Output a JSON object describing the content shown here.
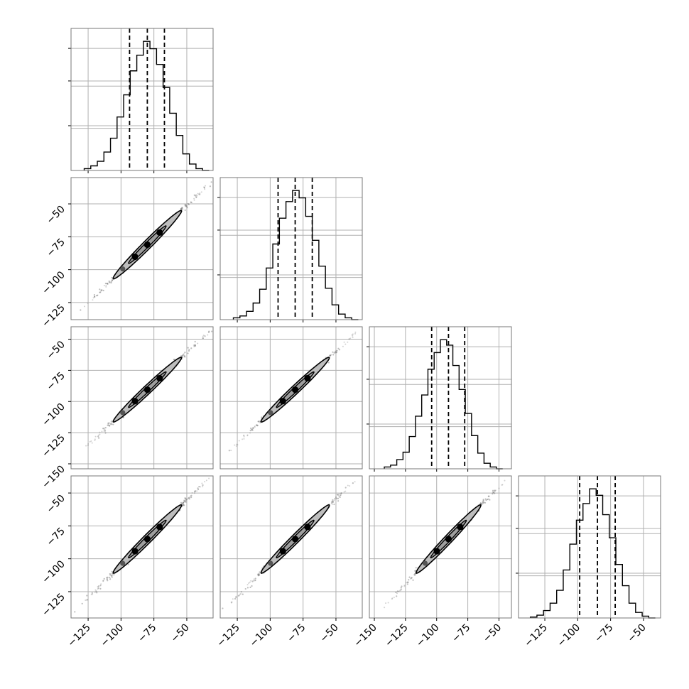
{
  "chart_data": {
    "type": "corner",
    "grid": true,
    "parameters": [
      {
        "range": [
          -138,
          -30
        ],
        "ticks": [
          -125,
          -100,
          -75,
          -50
        ],
        "tick_labels": [
          "−125",
          "−100",
          "−75",
          "−50"
        ],
        "histogram": {
          "bin_edges": [
            -128,
            -123,
            -118,
            -113,
            -108,
            -103,
            -98,
            -93,
            -88,
            -83,
            -78,
            -73,
            -68,
            -63,
            -58,
            -53,
            -48,
            -43,
            -38,
            -33
          ],
          "counts": [
            2,
            5,
            10,
            20,
            35,
            58,
            82,
            108,
            125,
            140,
            132,
            115,
            90,
            62,
            38,
            18,
            7,
            2,
            0
          ],
          "quantiles": [
            -93.5,
            -80.0,
            -67.0
          ]
        }
      },
      {
        "range": [
          -138,
          -30
        ],
        "ticks": [
          -125,
          -100,
          -75,
          -50
        ],
        "tick_labels": [
          "−125",
          "−100",
          "−75",
          "−50"
        ],
        "histogram": {
          "bin_edges": [
            -128,
            -123,
            -118,
            -113,
            -108,
            -103,
            -98,
            -93,
            -88,
            -83,
            -78,
            -73,
            -68,
            -63,
            -58,
            -53,
            -48,
            -43,
            -38,
            -33
          ],
          "counts": [
            2,
            4,
            9,
            18,
            33,
            56,
            82,
            110,
            128,
            140,
            132,
            112,
            86,
            58,
            34,
            16,
            6,
            2,
            0
          ],
          "quantiles": [
            -94.0,
            -81.0,
            -68.0
          ]
        }
      },
      {
        "range": [
          -154,
          -40
        ],
        "ticks": [
          -150,
          -125,
          -100,
          -75,
          -50
        ],
        "tick_labels": [
          "−150",
          "−125",
          "−100",
          "−75",
          "−50"
        ],
        "histogram": {
          "bin_edges": [
            -142,
            -137,
            -132,
            -127,
            -122,
            -117,
            -112,
            -107,
            -102,
            -97,
            -92,
            -87,
            -82,
            -77,
            -72,
            -67,
            -62,
            -57,
            -52,
            -47
          ],
          "counts": [
            2,
            4,
            10,
            18,
            35,
            57,
            80,
            108,
            126,
            140,
            134,
            112,
            86,
            60,
            36,
            17,
            6,
            2,
            0
          ],
          "quantiles": [
            -104.0,
            -90.5,
            -77.5
          ]
        }
      },
      {
        "range": [
          -145,
          -37
        ],
        "ticks": [
          -125,
          -100,
          -75,
          -50
        ],
        "tick_labels": [
          "−125",
          "−100",
          "−75",
          "−50"
        ],
        "histogram": {
          "bin_edges": [
            -136,
            -131,
            -126,
            -121,
            -116,
            -111,
            -106,
            -101,
            -96,
            -91,
            -86,
            -81,
            -76,
            -71,
            -66,
            -61,
            -56,
            -51,
            -46,
            -41
          ],
          "counts": [
            1,
            3,
            8,
            16,
            30,
            52,
            80,
            106,
            124,
            140,
            133,
            112,
            87,
            58,
            35,
            16,
            6,
            2,
            0
          ],
          "quantiles": [
            -98.5,
            -85.0,
            -71.5
          ]
        }
      }
    ],
    "pairs": [
      {
        "row": 1,
        "col": 0,
        "mean": [
          -80.0,
          -81.0
        ],
        "sd": [
          13.0,
          13.0
        ],
        "rho": 0.985,
        "scatter_x_range": [
          -128,
          -33
        ],
        "contour_levels": 2,
        "dots": [
          -1.6,
          -0.8,
          0.0,
          0.8
        ]
      },
      {
        "row": 2,
        "col": 0,
        "mean": [
          -80.0,
          -90.5
        ],
        "sd": [
          13.0,
          13.0
        ],
        "rho": 0.985,
        "scatter_x_range": [
          -128,
          -33
        ],
        "contour_levels": 2,
        "dots": [
          -1.6,
          -0.8,
          0.0,
          0.8
        ]
      },
      {
        "row": 2,
        "col": 1,
        "mean": [
          -81.0,
          -90.5
        ],
        "sd": [
          13.0,
          13.0
        ],
        "rho": 0.985,
        "scatter_x_range": [
          -130,
          -35
        ],
        "contour_levels": 2,
        "dots": [
          -1.6,
          -0.8,
          0.0,
          0.8
        ]
      },
      {
        "row": 3,
        "col": 0,
        "mean": [
          -80.0,
          -85.0
        ],
        "sd": [
          13.0,
          13.0
        ],
        "rho": 0.985,
        "scatter_x_range": [
          -128,
          -33
        ],
        "contour_levels": 2,
        "dots": [
          -1.6,
          -0.8,
          0.0,
          0.8
        ]
      },
      {
        "row": 3,
        "col": 1,
        "mean": [
          -81.0,
          -85.0
        ],
        "sd": [
          13.0,
          13.0
        ],
        "rho": 0.985,
        "scatter_x_range": [
          -130,
          -35
        ],
        "contour_levels": 2,
        "dots": [
          -1.6,
          -0.8,
          0.0,
          0.8
        ]
      },
      {
        "row": 3,
        "col": 2,
        "mean": [
          -90.5,
          -85.0
        ],
        "sd": [
          13.0,
          13.0
        ],
        "rho": 0.985,
        "scatter_x_range": [
          -143,
          -45
        ],
        "contour_levels": 2,
        "dots": [
          -1.6,
          -0.8,
          0.0,
          0.8
        ]
      }
    ],
    "colors": {
      "line": "#000000",
      "grid": "#b0b0b0",
      "frame": "#777777",
      "scatter": "#6e6e6e",
      "contour_fill": "#bdbdbd",
      "dot_inner": "#000000",
      "dot_outer": "#555555"
    }
  }
}
